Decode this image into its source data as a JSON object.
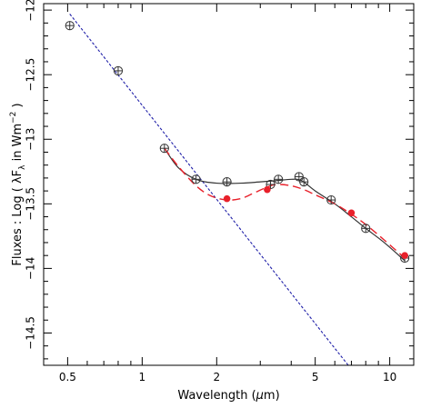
{
  "chart_data": {
    "type": "scatter",
    "title": "",
    "xlabel": {
      "prefix": "Wavelength (",
      "greek": "μ",
      "suffix": "m)"
    },
    "ylabel": {
      "prefix": "Fluxes : Log ( ",
      "lambda": "λ",
      "F": "F",
      "sub": "λ",
      "mid": " in Wm",
      "sup": "−2",
      "end": " )"
    },
    "xscale": "log",
    "xlim": [
      0.4,
      12.5
    ],
    "ylim": [
      -14.75,
      -11.95
    ],
    "grid": false,
    "legend": "none",
    "x_ticks": [
      0.5,
      1,
      2,
      5,
      10
    ],
    "x_tick_labels": [
      "0.5",
      "1",
      "2",
      "5",
      "10"
    ],
    "y_ticks": [
      -12,
      -12.5,
      -13,
      -13.5,
      -14,
      -14.5
    ],
    "y_tick_labels": [
      "−12",
      "−12.5",
      "−13",
      "−13.5",
      "−14",
      "−14.5"
    ],
    "series": [
      {
        "kind": "markers-open-circle-cross",
        "color": "#333333",
        "x": [
          0.51,
          0.8,
          1.23,
          1.65,
          2.2,
          3.3,
          3.55,
          4.3,
          4.5,
          5.8,
          8.0,
          11.5
        ],
        "y": [
          -12.12,
          -12.47,
          -13.07,
          -13.31,
          -13.33,
          -13.35,
          -13.31,
          -13.29,
          -13.33,
          -13.47,
          -13.69,
          -13.92
        ]
      },
      {
        "kind": "markers-filled",
        "color": "#e8202a",
        "x": [
          2.2,
          3.2,
          7.0,
          11.5
        ],
        "y": [
          -13.46,
          -13.39,
          -13.57,
          -13.9
        ]
      },
      {
        "kind": "line-solid",
        "color": "#333333",
        "x": [
          1.23,
          1.4,
          1.65,
          2.0,
          2.5,
          3.0,
          3.5,
          4.0,
          4.4,
          5.0,
          6.0,
          7.0,
          8.0,
          9.5,
          11.5
        ],
        "y": [
          -13.07,
          -13.22,
          -13.31,
          -13.34,
          -13.34,
          -13.33,
          -13.32,
          -13.31,
          -13.32,
          -13.4,
          -13.5,
          -13.6,
          -13.69,
          -13.8,
          -13.94
        ]
      },
      {
        "kind": "line-dashed",
        "color": "#e8202a",
        "x": [
          1.23,
          1.4,
          1.65,
          1.9,
          2.2,
          2.5,
          2.8,
          3.2,
          3.5,
          4.0,
          4.5,
          5.0,
          6.0,
          7.0,
          8.0,
          9.5,
          11.5
        ],
        "y": [
          -13.07,
          -13.21,
          -13.36,
          -13.44,
          -13.47,
          -13.46,
          -13.42,
          -13.37,
          -13.35,
          -13.36,
          -13.39,
          -13.43,
          -13.5,
          -13.58,
          -13.66,
          -13.78,
          -13.92
        ]
      },
      {
        "kind": "line-dashed-thin",
        "color": "#1f1fa8",
        "x": [
          0.51,
          6.8
        ],
        "y": [
          -12.03,
          -14.75
        ]
      }
    ]
  }
}
